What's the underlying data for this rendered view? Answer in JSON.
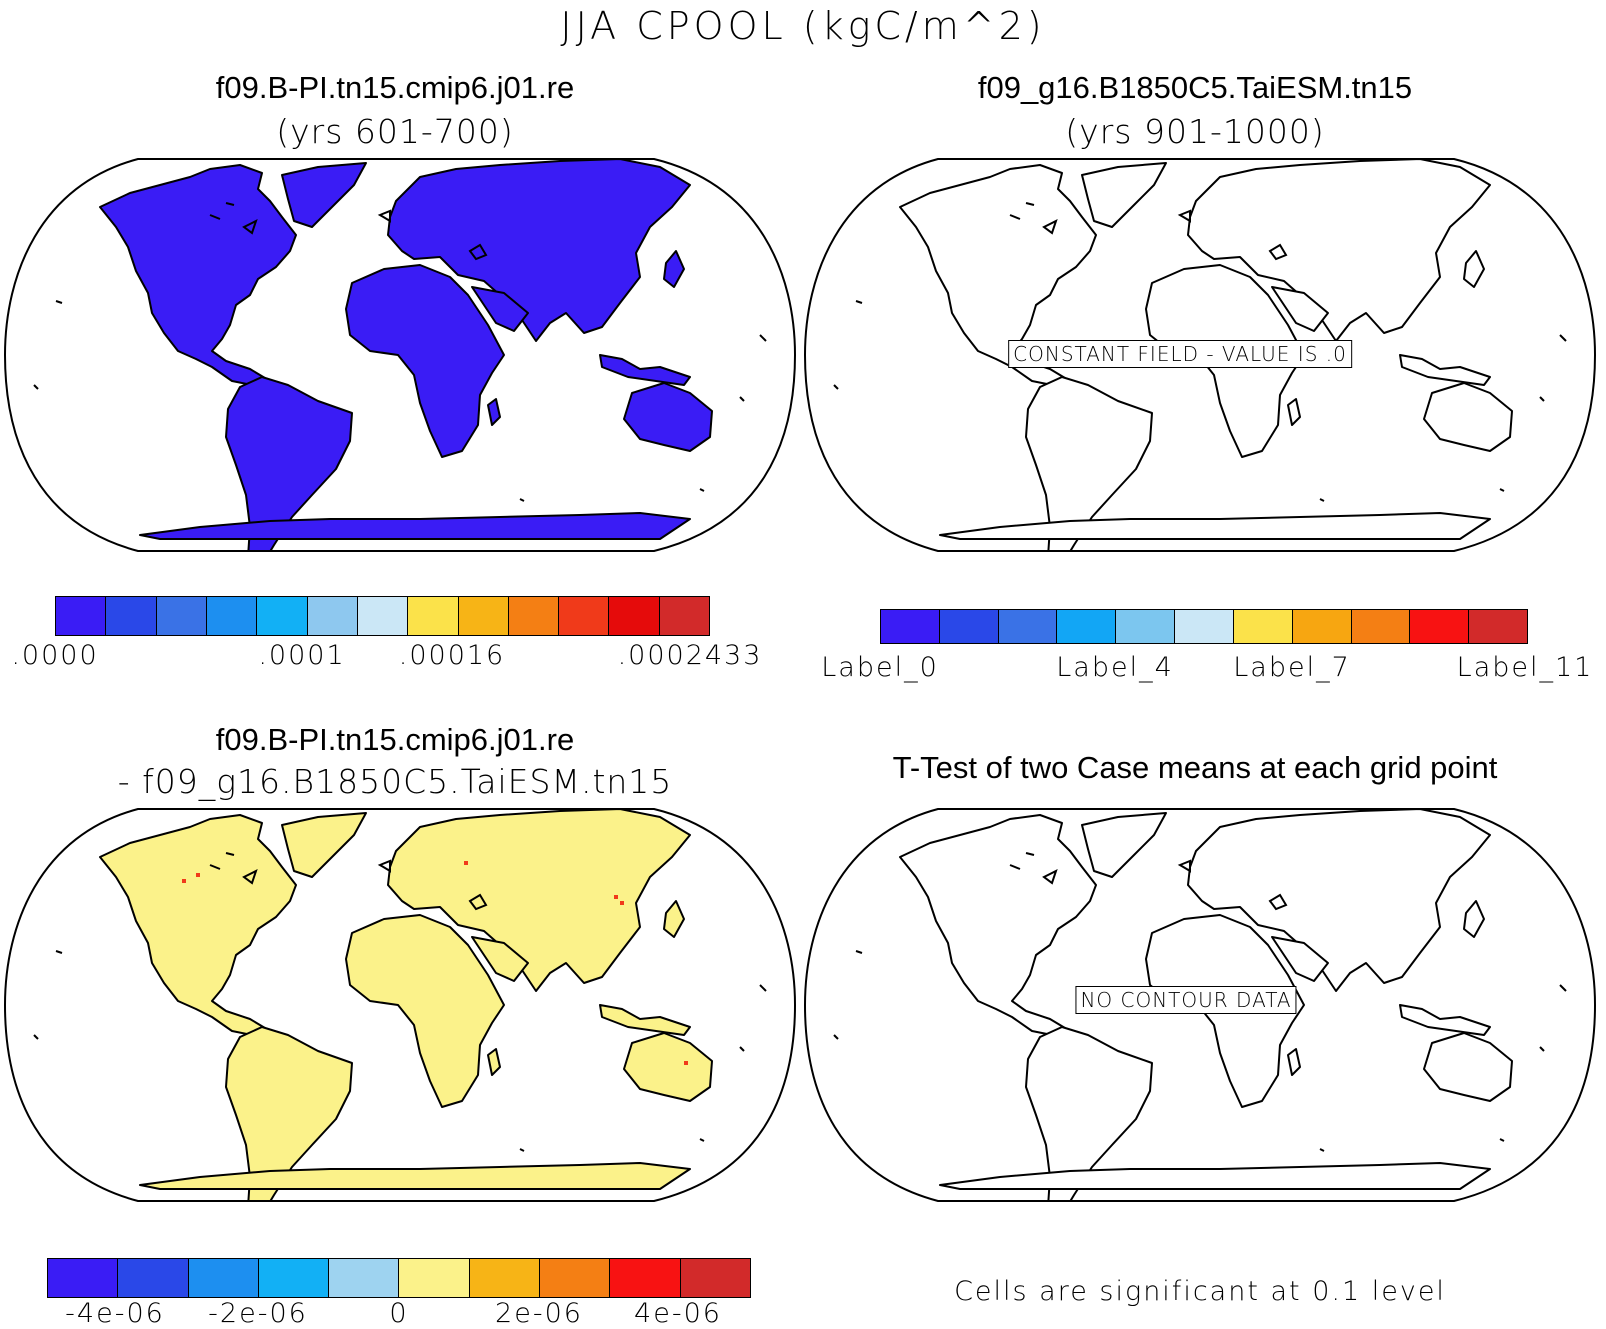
{
  "title": "JJA CPOOL (kgC/m^2)",
  "panels": [
    {
      "title": "f09.B-PI.tn15.cmip6.j01.re",
      "subtitle": "(yrs 601-700)",
      "land_fill": "#3a1cf5",
      "colorbar": {
        "colors": [
          "#3a1cf5",
          "#2a48e8",
          "#3a72e6",
          "#1d8ff0",
          "#12b0f5",
          "#8ec8ef",
          "#cbe7f6",
          "#fbe24a",
          "#f7b416",
          "#f47f14",
          "#f03a1a",
          "#e50b0b",
          "#d22a2a"
        ],
        "labels": [
          ".0000",
          ".0001",
          ".00016",
          ".0002433"
        ]
      }
    },
    {
      "title": "f09_g16.B1850C5.TaiESM.tn15",
      "subtitle": "(yrs 901-1000)",
      "message": "CONSTANT FIELD - VALUE IS .0",
      "colorbar": {
        "colors": [
          "#3a1cf5",
          "#2a48e8",
          "#3a72e6",
          "#12a6f5",
          "#7cc6ef",
          "#cbe7f6",
          "#fbe24a",
          "#f7a611",
          "#f47f14",
          "#f81212",
          "#d22a2a"
        ],
        "labels": [
          "Label_0",
          "Label_4",
          "Label_7",
          "Label_11"
        ]
      }
    },
    {
      "title": "f09.B-PI.tn15.cmip6.j01.re",
      "subtitle": "- f09_g16.B1850C5.TaiESM.tn15",
      "land_fill": "#fbf28a",
      "colorbar": {
        "colors": [
          "#3a1cf5",
          "#2a48e8",
          "#1d8ff0",
          "#12b0f5",
          "#9ed3f0",
          "#fbf28a",
          "#f7b416",
          "#f47f14",
          "#f81212",
          "#d22a2a"
        ],
        "labels": [
          "-4e-06",
          "-2e-06",
          "0",
          "2e-06",
          "4e-06"
        ]
      }
    },
    {
      "title": "T-Test of two Case means at each grid point",
      "message": "NO CONTOUR DATA",
      "note": "Cells are significant at 0.1 level"
    }
  ]
}
